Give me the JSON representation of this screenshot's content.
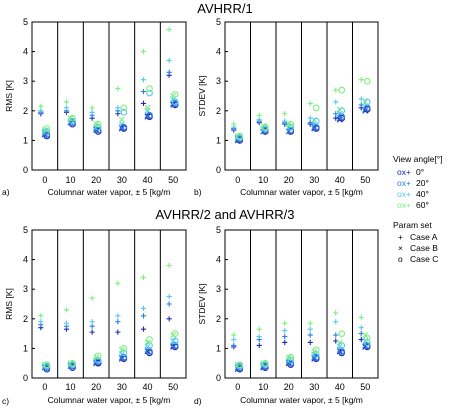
{
  "figure": {
    "section_titles": [
      "AVHRR/1",
      "AVHRR/2 and AVHRR/3"
    ]
  },
  "legend": {
    "angle_title": "View angle[°]",
    "angles": [
      {
        "label": "0°",
        "color": "#1e2bb8"
      },
      {
        "label": "20°",
        "color": "#2f7fe0"
      },
      {
        "label": "40°",
        "color": "#55c8f0"
      },
      {
        "label": "60°",
        "color": "#7cf07c"
      }
    ],
    "param_title": "Param set",
    "params": [
      {
        "label": "Case A",
        "marker": "+"
      },
      {
        "label": "Case B",
        "marker": "×"
      },
      {
        "label": "Case C",
        "marker": "o"
      }
    ]
  },
  "chart_data": [
    {
      "type": "scatter",
      "panel_label": "a)",
      "ylabel": "RMS [K]",
      "xlabel": "Columnar water vapor, ± 5 [kg/m",
      "categories": [
        "0",
        "10",
        "20",
        "30",
        "40",
        "50"
      ],
      "ylim": [
        0,
        5
      ],
      "yticks": [
        0,
        1,
        2,
        3,
        4,
        5
      ],
      "grid": false,
      "series": [
        {
          "angle": "0°",
          "case": "Case A",
          "values": [
            1.9,
            1.95,
            1.75,
            1.9,
            2.25,
            3.2
          ]
        },
        {
          "angle": "20°",
          "case": "Case A",
          "values": [
            1.95,
            2.0,
            1.85,
            2.0,
            2.65,
            3.3
          ]
        },
        {
          "angle": "40°",
          "case": "Case A",
          "values": [
            2.0,
            2.1,
            1.95,
            2.1,
            3.05,
            3.7
          ]
        },
        {
          "angle": "60°",
          "case": "Case A",
          "values": [
            2.15,
            2.3,
            2.1,
            2.75,
            4.0,
            4.75
          ]
        },
        {
          "angle": "0°",
          "case": "Case B",
          "values": [
            1.2,
            1.6,
            1.35,
            1.4,
            1.8,
            2.2
          ]
        },
        {
          "angle": "20°",
          "case": "Case B",
          "values": [
            1.25,
            1.6,
            1.4,
            1.45,
            1.85,
            2.25
          ]
        },
        {
          "angle": "40°",
          "case": "Case B",
          "values": [
            1.3,
            1.65,
            1.45,
            1.55,
            2.0,
            2.4
          ]
        },
        {
          "angle": "60°",
          "case": "Case B",
          "values": [
            1.35,
            1.75,
            1.55,
            1.7,
            2.1,
            2.5
          ]
        },
        {
          "angle": "0°",
          "case": "Case C",
          "values": [
            1.15,
            1.55,
            1.3,
            1.4,
            1.8,
            2.2
          ]
        },
        {
          "angle": "20°",
          "case": "Case C",
          "values": [
            1.2,
            1.6,
            1.35,
            1.45,
            1.85,
            2.25
          ]
        },
        {
          "angle": "40°",
          "case": "Case C",
          "values": [
            1.3,
            1.65,
            1.45,
            1.95,
            2.6,
            2.3
          ]
        },
        {
          "angle": "60°",
          "case": "Case C",
          "values": [
            1.4,
            1.75,
            1.55,
            2.1,
            2.75,
            2.55
          ]
        }
      ]
    },
    {
      "type": "scatter",
      "panel_label": "b)",
      "ylabel": "STDEV [K]",
      "xlabel": "Columnar water vapor, ± 5 [kg/m",
      "categories": [
        "0",
        "10",
        "20",
        "30",
        "40",
        "50"
      ],
      "ylim": [
        0,
        5
      ],
      "yticks": [
        0,
        1,
        2,
        3,
        4,
        5
      ],
      "grid": false,
      "series": [
        {
          "angle": "0°",
          "case": "Case A",
          "values": [
            1.35,
            1.6,
            1.55,
            1.55,
            1.75,
            2.1
          ]
        },
        {
          "angle": "20°",
          "case": "Case A",
          "values": [
            1.4,
            1.65,
            1.6,
            1.6,
            1.9,
            2.2
          ]
        },
        {
          "angle": "40°",
          "case": "Case A",
          "values": [
            1.45,
            1.7,
            1.65,
            1.75,
            2.3,
            2.4
          ]
        },
        {
          "angle": "60°",
          "case": "Case A",
          "values": [
            1.55,
            1.85,
            1.9,
            2.25,
            2.7,
            3.05
          ]
        },
        {
          "angle": "0°",
          "case": "Case B",
          "values": [
            1.0,
            1.3,
            1.3,
            1.4,
            1.7,
            2.0
          ]
        },
        {
          "angle": "20°",
          "case": "Case B",
          "values": [
            1.05,
            1.3,
            1.3,
            1.45,
            1.75,
            2.05
          ]
        },
        {
          "angle": "40°",
          "case": "Case B",
          "values": [
            1.1,
            1.4,
            1.45,
            1.55,
            1.9,
            2.15
          ]
        },
        {
          "angle": "60°",
          "case": "Case B",
          "values": [
            1.15,
            1.5,
            1.55,
            1.7,
            2.05,
            2.3
          ]
        },
        {
          "angle": "0°",
          "case": "Case C",
          "values": [
            1.0,
            1.3,
            1.3,
            1.4,
            1.75,
            2.05
          ]
        },
        {
          "angle": "20°",
          "case": "Case C",
          "values": [
            1.05,
            1.35,
            1.35,
            1.45,
            1.8,
            2.1
          ]
        },
        {
          "angle": "40°",
          "case": "Case C",
          "values": [
            1.1,
            1.4,
            1.45,
            1.65,
            2.0,
            2.3
          ]
        },
        {
          "angle": "60°",
          "case": "Case C",
          "values": [
            1.15,
            1.45,
            1.55,
            2.1,
            2.7,
            3.0
          ]
        }
      ]
    },
    {
      "type": "scatter",
      "panel_label": "c)",
      "ylabel": "RMS [K]",
      "xlabel": "Columnar water vapor, ± 5 [kg/m",
      "categories": [
        "0",
        "10",
        "20",
        "30",
        "40",
        "50"
      ],
      "ylim": [
        0,
        5
      ],
      "yticks": [
        0,
        1,
        2,
        3,
        4,
        5
      ],
      "grid": false,
      "series": [
        {
          "angle": "0°",
          "case": "Case A",
          "values": [
            1.7,
            1.65,
            1.55,
            1.55,
            1.65,
            2.0
          ]
        },
        {
          "angle": "20°",
          "case": "Case A",
          "values": [
            1.8,
            1.75,
            1.75,
            1.9,
            2.1,
            2.5
          ]
        },
        {
          "angle": "40°",
          "case": "Case A",
          "values": [
            1.9,
            1.85,
            1.9,
            2.1,
            2.35,
            2.75
          ]
        },
        {
          "angle": "60°",
          "case": "Case A",
          "values": [
            2.1,
            2.3,
            2.7,
            3.2,
            3.4,
            3.8
          ]
        },
        {
          "angle": "0°",
          "case": "Case B",
          "values": [
            0.35,
            0.4,
            0.5,
            0.65,
            0.9,
            1.05
          ]
        },
        {
          "angle": "20°",
          "case": "Case B",
          "values": [
            0.35,
            0.4,
            0.55,
            0.7,
            0.95,
            1.1
          ]
        },
        {
          "angle": "40°",
          "case": "Case B",
          "values": [
            0.4,
            0.45,
            0.6,
            0.8,
            1.05,
            1.25
          ]
        },
        {
          "angle": "60°",
          "case": "Case B",
          "values": [
            0.45,
            0.5,
            0.7,
            0.95,
            1.2,
            1.45
          ]
        },
        {
          "angle": "0°",
          "case": "Case C",
          "values": [
            0.3,
            0.35,
            0.5,
            0.65,
            0.85,
            1.05
          ]
        },
        {
          "angle": "20°",
          "case": "Case C",
          "values": [
            0.35,
            0.4,
            0.55,
            0.7,
            0.9,
            1.1
          ]
        },
        {
          "angle": "40°",
          "case": "Case C",
          "values": [
            0.4,
            0.45,
            0.6,
            0.85,
            1.1,
            1.25
          ]
        },
        {
          "angle": "60°",
          "case": "Case C",
          "values": [
            0.45,
            0.5,
            0.75,
            1.0,
            1.3,
            1.5
          ]
        }
      ]
    },
    {
      "type": "scatter",
      "panel_label": "d)",
      "ylabel": "STDEV [K]",
      "xlabel": "Columnar water vapor, ± 5 [kg/m",
      "categories": [
        "0",
        "10",
        "20",
        "30",
        "40",
        "50"
      ],
      "ylim": [
        0,
        5
      ],
      "yticks": [
        0,
        1,
        2,
        3,
        4,
        5
      ],
      "grid": false,
      "series": [
        {
          "angle": "0°",
          "case": "Case A",
          "values": [
            1.05,
            1.1,
            1.2,
            1.2,
            1.25,
            1.3
          ]
        },
        {
          "angle": "20°",
          "case": "Case A",
          "values": [
            1.1,
            1.3,
            1.4,
            1.45,
            1.45,
            1.5
          ]
        },
        {
          "angle": "40°",
          "case": "Case A",
          "values": [
            1.3,
            1.4,
            1.6,
            1.65,
            1.9,
            1.7
          ]
        },
        {
          "angle": "60°",
          "case": "Case A",
          "values": [
            1.45,
            1.65,
            1.85,
            1.85,
            2.2,
            2.05
          ]
        },
        {
          "angle": "0°",
          "case": "Case B",
          "values": [
            0.3,
            0.35,
            0.5,
            0.65,
            0.9,
            1.05
          ]
        },
        {
          "angle": "20°",
          "case": "Case B",
          "values": [
            0.35,
            0.4,
            0.55,
            0.7,
            0.95,
            1.1
          ]
        },
        {
          "angle": "40°",
          "case": "Case B",
          "values": [
            0.4,
            0.45,
            0.6,
            0.8,
            1.05,
            1.25
          ]
        },
        {
          "angle": "60°",
          "case": "Case B",
          "values": [
            0.45,
            0.5,
            0.7,
            0.9,
            1.2,
            1.45
          ]
        },
        {
          "angle": "0°",
          "case": "Case C",
          "values": [
            0.3,
            0.35,
            0.45,
            0.65,
            0.85,
            1.05
          ]
        },
        {
          "angle": "20°",
          "case": "Case C",
          "values": [
            0.35,
            0.4,
            0.5,
            0.7,
            0.9,
            1.1
          ]
        },
        {
          "angle": "40°",
          "case": "Case C",
          "values": [
            0.4,
            0.45,
            0.6,
            0.8,
            1.1,
            1.2
          ]
        },
        {
          "angle": "60°",
          "case": "Case C",
          "values": [
            0.45,
            0.5,
            0.7,
            0.95,
            1.5,
            1.35
          ]
        }
      ]
    }
  ]
}
